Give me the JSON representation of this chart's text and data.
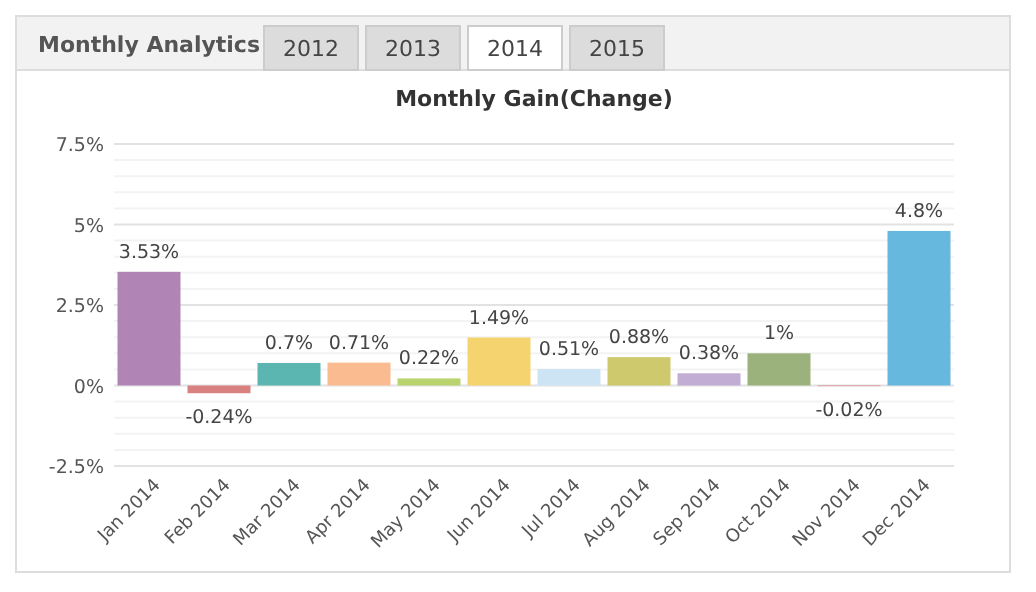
{
  "chart_data": {
    "type": "bar",
    "title": "Monthly Gain(Change)",
    "annotations": [
      "Monthly Analytics",
      "2012",
      "2013",
      "2014",
      "2015"
    ],
    "categories": [
      "Jan 2014",
      "Feb 2014",
      "Mar 2014",
      "Apr 2014",
      "May 2014",
      "Jun 2014",
      "Jul 2014",
      "Aug 2014",
      "Sep 2014",
      "Oct 2014",
      "Nov 2014",
      "Dec 2014"
    ],
    "values": [
      3.53,
      -0.24,
      0.7,
      0.71,
      0.22,
      1.49,
      0.51,
      0.88,
      0.38,
      1,
      -0.02,
      4.8
    ],
    "colors": [
      "#b085b5",
      "#d98080",
      "#5bb5b0",
      "#f9bb8f",
      "#b9d36f",
      "#f5d46f",
      "#cde4f5",
      "#cdc96c",
      "#c2aed4",
      "#9bb27c",
      "#d98080",
      "#67b8df"
    ],
    "value_labels": [
      "3.53%",
      "-0.24%",
      "0.7%",
      "0.71%",
      "0.22%",
      "1.49%",
      "0.51%",
      "0.88%",
      "0.38%",
      "1%",
      "-0.02%",
      "4.8%"
    ],
    "ylim": [
      -2.5,
      7.5
    ],
    "yticks": [
      {
        "value": -2.5,
        "label": "-2.5%"
      },
      {
        "value": -2,
        "label": null
      },
      {
        "value": -1.5,
        "label": null
      },
      {
        "value": -1,
        "label": null
      },
      {
        "value": -0.5,
        "label": null
      },
      {
        "value": 0,
        "label": "0%"
      },
      {
        "value": 0.5,
        "label": null
      },
      {
        "value": 1,
        "label": null
      },
      {
        "value": 1.5,
        "label": null
      },
      {
        "value": 2,
        "label": null
      },
      {
        "value": 2.5,
        "label": "2.5%"
      },
      {
        "value": 3,
        "label": null
      },
      {
        "value": 3.5,
        "label": null
      },
      {
        "value": 4,
        "label": null
      },
      {
        "value": 4.5,
        "label": null
      },
      {
        "value": 5,
        "label": "5%"
      },
      {
        "value": 5.5,
        "label": null
      },
      {
        "value": 6,
        "label": null
      },
      {
        "value": 6.5,
        "label": null
      },
      {
        "value": 7,
        "label": null
      },
      {
        "value": 7.5,
        "label": "7.5%"
      }
    ],
    "grid": "y"
  }
}
